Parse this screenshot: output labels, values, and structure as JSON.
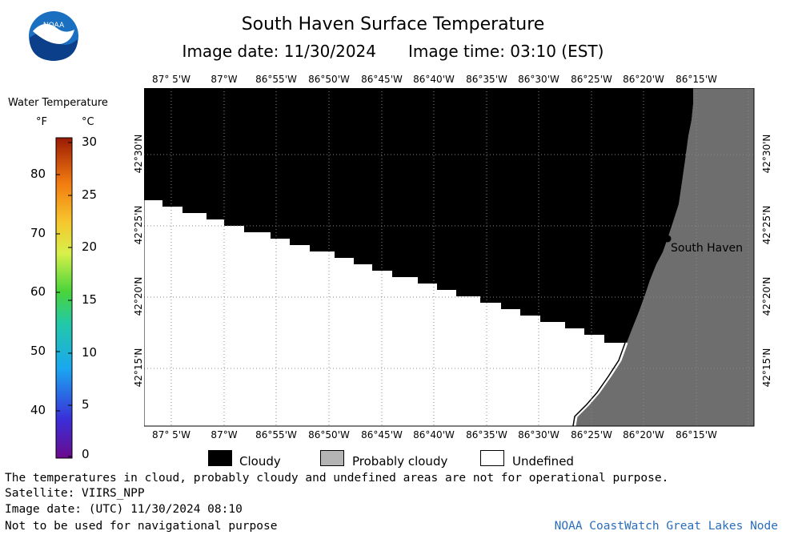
{
  "header": {
    "title": "South Haven Surface Temperature",
    "image_date": "Image date: 11/30/2024",
    "image_time": "Image time: 03:10 (EST)"
  },
  "logo": {
    "text": "NOAA",
    "icon": "noaa-logo-icon"
  },
  "legend": {
    "title": "Water Temperature",
    "unit_f": "°F",
    "unit_c": "°C",
    "f_ticks": [
      "80",
      "70",
      "60",
      "50",
      "40"
    ],
    "c_ticks": [
      "30",
      "25",
      "20",
      "15",
      "10",
      "5",
      "0"
    ]
  },
  "map": {
    "lon_labels": [
      "87° 5'W",
      "87°W",
      "86°55'W",
      "86°50'W",
      "86°45'W",
      "86°40'W",
      "86°35'W",
      "86°30'W",
      "86°25'W",
      "86°20'W",
      "86°15'W"
    ],
    "lat_labels": [
      "42°30'N",
      "42°25'N",
      "42°20'N",
      "42°15'N"
    ],
    "city_label": "South Haven",
    "colors": {
      "cloudy": "#000000",
      "probably_cloudy": "#6e6e6e",
      "undefined": "#ffffff"
    }
  },
  "key": {
    "cloudy": "Cloudy",
    "probably_cloudy": "Probably cloudy",
    "undefined": "Undefined"
  },
  "footer": {
    "note": "The temperatures in cloud, probably cloudy and undefined areas are not for operational purpose.",
    "satellite": "Satellite: VIIRS_NPP",
    "utc_date": "Image date: (UTC) 11/30/2024  08:10",
    "nav_warning": "Not to be used for navigational purpose",
    "credit": "NOAA CoastWatch Great Lakes Node"
  }
}
